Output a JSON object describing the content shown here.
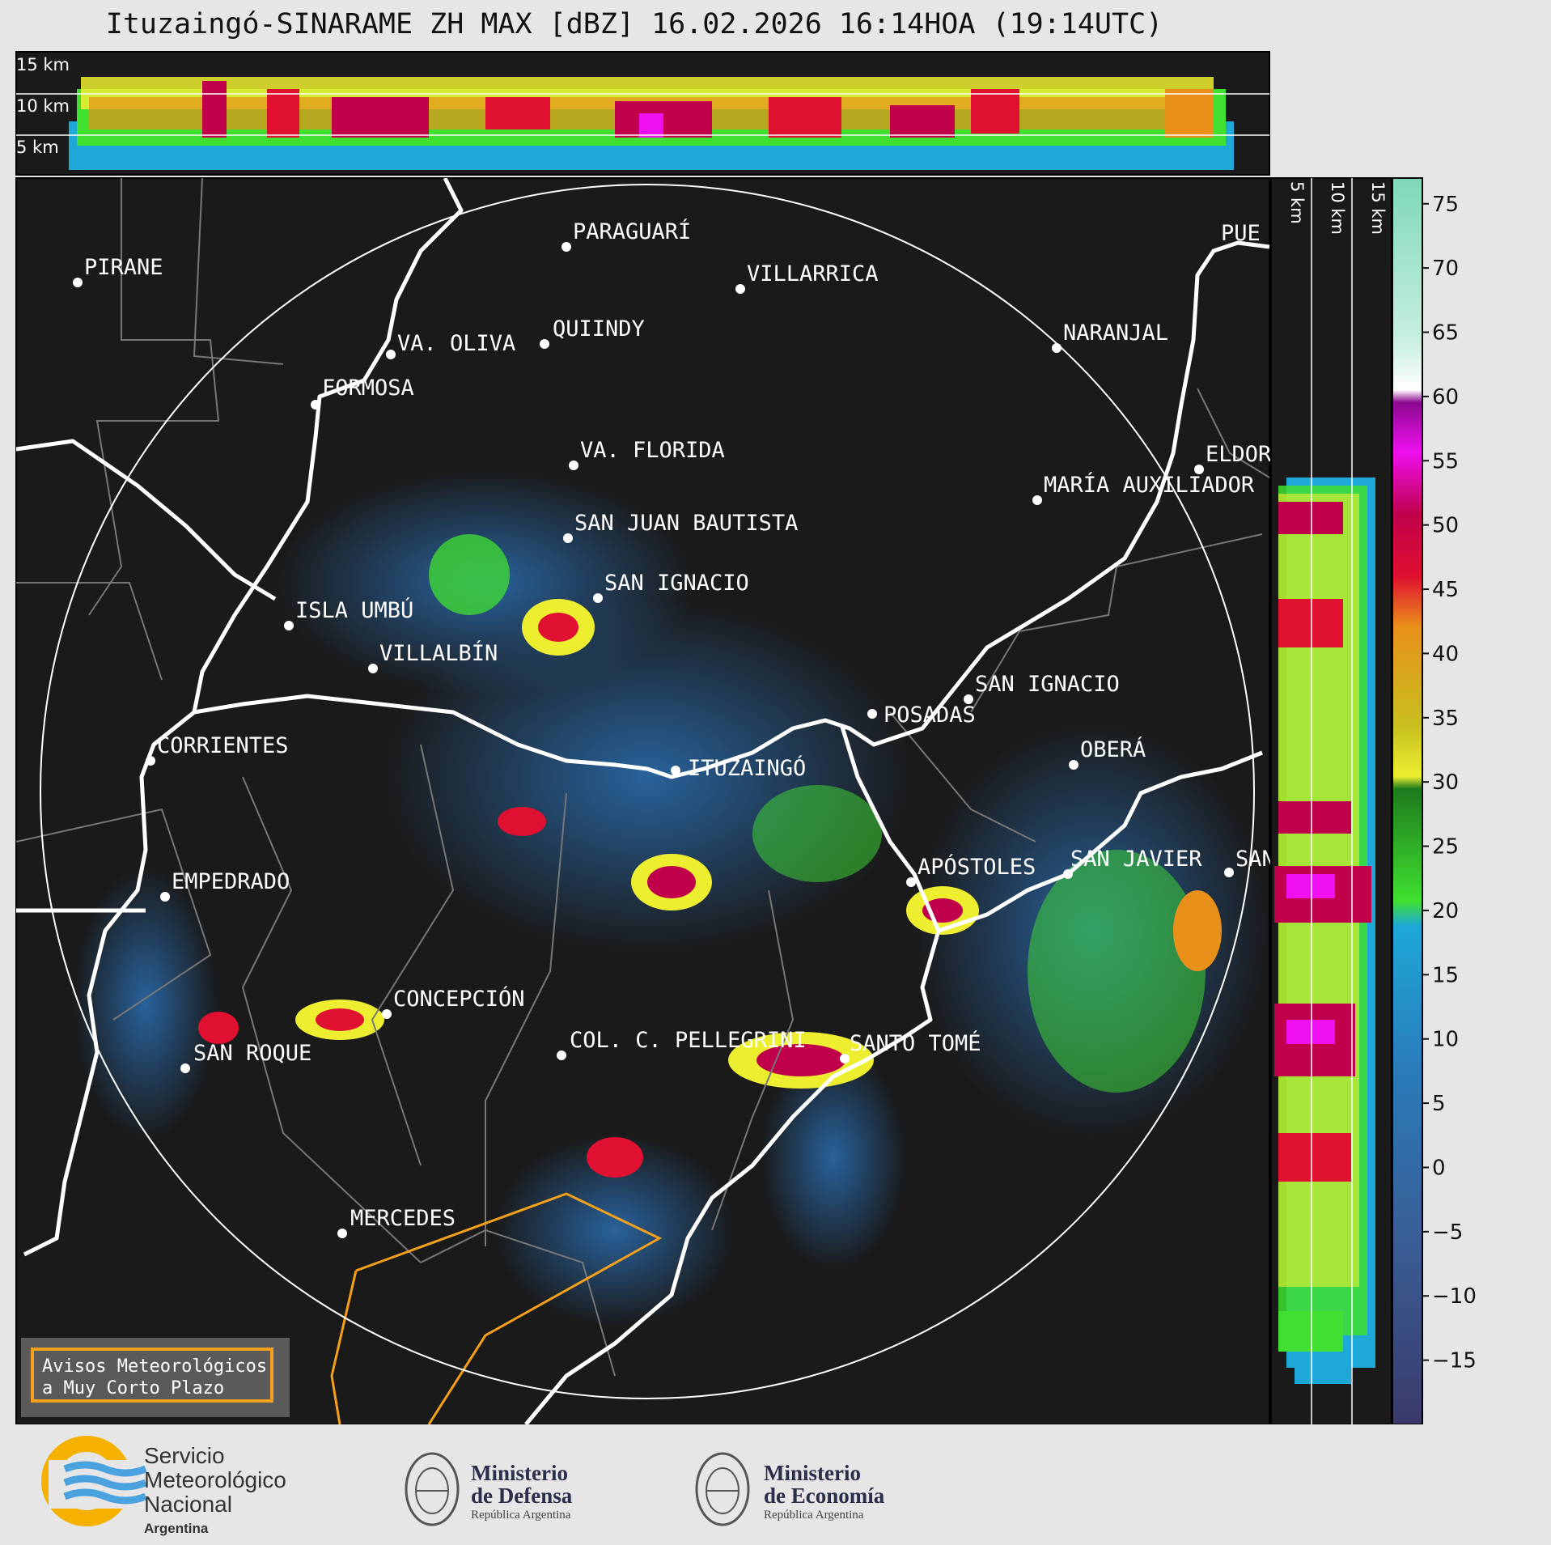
{
  "title": "Ituzaingó-SINARAME ZH MAX [dBZ] 16.02.2026 16:14HOA (19:14UTC)",
  "height_labels": {
    "top": [
      "15 km",
      "10 km",
      "5 km"
    ],
    "side": [
      "5 km",
      "10 km",
      "15 km"
    ]
  },
  "cities": [
    {
      "name": "PIRANE"
    },
    {
      "name": "PARAGUARÍ"
    },
    {
      "name": "VILLARRICA"
    },
    {
      "name": "VA. OLIVA"
    },
    {
      "name": "QUIINDY"
    },
    {
      "name": "NARANJAL"
    },
    {
      "name": "FORMOSA"
    },
    {
      "name": "VA. FLORIDA"
    },
    {
      "name": "ELDOR"
    },
    {
      "name": "MARÍA AUXILIADOR"
    },
    {
      "name": "SAN JUAN BAUTISTA"
    },
    {
      "name": "SAN IGNACIO"
    },
    {
      "name": "ISLA UMBÚ"
    },
    {
      "name": "VILLALBÍN"
    },
    {
      "name": "SAN IGNACIO"
    },
    {
      "name": "POSADAS"
    },
    {
      "name": "CORRIENTES"
    },
    {
      "name": "ITUZAINGÓ"
    },
    {
      "name": "OBERÁ"
    },
    {
      "name": "APÓSTOLES"
    },
    {
      "name": "SAN JAVIER"
    },
    {
      "name": "SAN"
    },
    {
      "name": "EMPEDRADO"
    },
    {
      "name": "CONCEPCIÓN"
    },
    {
      "name": "COL. C. PELLEGRINI"
    },
    {
      "name": "SANTO TOMÉ"
    },
    {
      "name": "SAN ROQUE"
    },
    {
      "name": "MERCEDES"
    },
    {
      "name": "PUE"
    }
  ],
  "colorbar": {
    "ticks": [
      "75",
      "70",
      "65",
      "60",
      "55",
      "50",
      "45",
      "40",
      "35",
      "30",
      "25",
      "20",
      "15",
      "10",
      "5",
      "0",
      "−5",
      "−10",
      "−15"
    ],
    "range": [
      -20,
      77
    ],
    "unit": "dBZ"
  },
  "legend": {
    "line1": "Avisos Meteorológicos",
    "line2": "a Muy Corto Plazo"
  },
  "logos": {
    "smn": {
      "line1": "Servicio",
      "line2": "Meteorológico",
      "line3": "Nacional",
      "line4": "Argentina"
    },
    "defensa": {
      "line1": "Ministerio",
      "line2": "de Defensa",
      "line3": "República Argentina"
    },
    "economia": {
      "line1": "Ministerio",
      "line2": "de Economía",
      "line3": "República Argentina"
    }
  },
  "colors": {
    "map_bg": "#1a1a1a",
    "border": "#ffffff",
    "warning": "#f5a01a"
  }
}
